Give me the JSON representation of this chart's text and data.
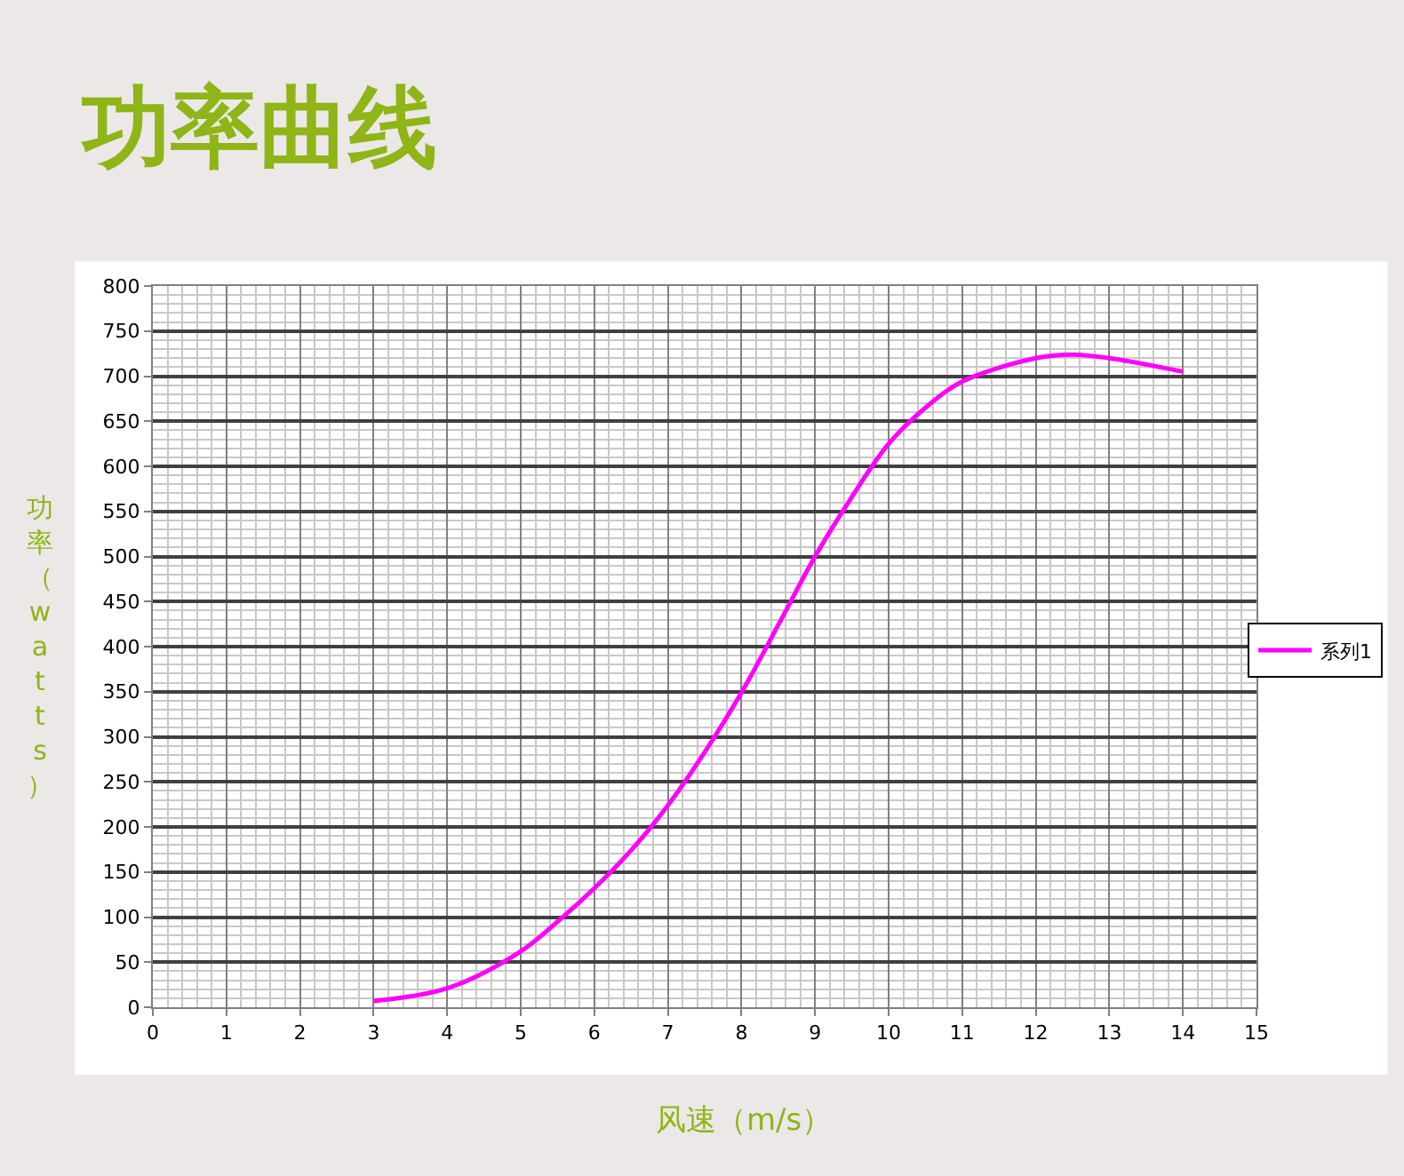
{
  "chart_data": {
    "type": "line",
    "title": "功率曲线",
    "xlabel": "风速（m/s）",
    "ylabel": "功率（watts）",
    "xlim": [
      0,
      15
    ],
    "xticks": [
      0,
      1,
      2,
      3,
      4,
      5,
      6,
      7,
      8,
      9,
      10,
      11,
      12,
      13,
      14,
      15
    ],
    "ylim": [
      0,
      800
    ],
    "yticks": [
      0,
      50,
      100,
      150,
      200,
      250,
      300,
      350,
      400,
      450,
      500,
      550,
      600,
      650,
      700,
      750,
      800
    ],
    "grid": true,
    "legend": "right",
    "marker": "none",
    "line_style": "solid",
    "x": [
      3,
      4,
      5,
      5.5,
      6,
      6.5,
      7,
      7.5,
      8,
      8.5,
      9,
      9.5,
      10,
      10.5,
      11,
      12,
      12.5,
      13,
      14
    ],
    "series": [
      {
        "name": "系列1",
        "color": "#ff00ff",
        "values": [
          7,
          21,
          62,
          95,
          132,
          174,
          224,
          283,
          349,
          424,
          500,
          566,
          625,
          665,
          694,
          720,
          724,
          720,
          705
        ]
      }
    ]
  }
}
